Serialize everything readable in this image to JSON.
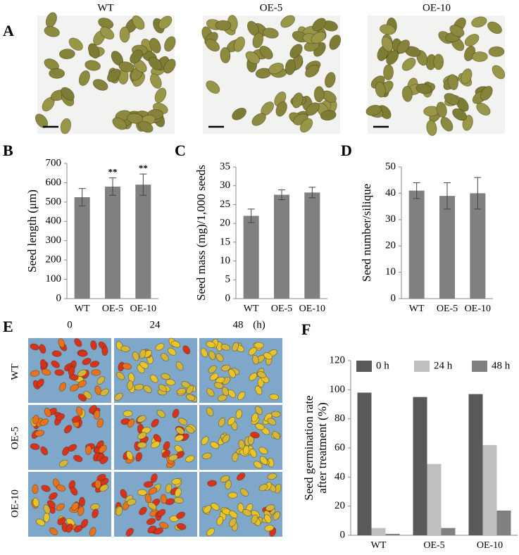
{
  "figure": {
    "panel_labels": [
      "A",
      "B",
      "C",
      "D",
      "E",
      "F"
    ],
    "photo_a_labels": [
      "WT",
      "OE-5",
      "OE-10"
    ],
    "photo_e_columns": [
      "0",
      "24",
      "48"
    ],
    "photo_e_unit": "(h)",
    "photo_e_rows": [
      "WT",
      "OE-5",
      "OE-10"
    ]
  },
  "chart_data": [
    {
      "type": "bar",
      "ylabel": [
        "Seed length (μm)"
      ],
      "categories": [
        "WT",
        "OE-5",
        "OE-10"
      ],
      "values": [
        525,
        580,
        590
      ],
      "errors": [
        45,
        45,
        55
      ],
      "annotations": [
        null,
        "**",
        "**"
      ],
      "color": "#808080",
      "ylim": [
        0,
        700
      ],
      "yticks": [
        0,
        100,
        200,
        300,
        400,
        500,
        600,
        700
      ]
    },
    {
      "type": "bar",
      "ylabel": [
        "Seed mass (mg)/1,000 seeds"
      ],
      "categories": [
        "WT",
        "OE-5",
        "OE-10"
      ],
      "values": [
        22,
        27.6,
        28.2
      ],
      "errors": [
        1.8,
        1.3,
        1.4
      ],
      "color": "#808080",
      "ylim": [
        0,
        35
      ],
      "yticks": [
        0,
        5,
        10,
        15,
        20,
        25,
        30,
        35
      ]
    },
    {
      "type": "bar",
      "ylabel": [
        "Seed number/silique"
      ],
      "categories": [
        "WT",
        "OE-5",
        "OE-10"
      ],
      "values": [
        41,
        39,
        40
      ],
      "errors": [
        3,
        5,
        6
      ],
      "color": "#808080",
      "ylim": [
        0,
        50
      ],
      "yticks": [
        0,
        10,
        20,
        30,
        40,
        50
      ]
    },
    {
      "type": "bar",
      "ylabel": [
        "Seed germination rate",
        "after treatment (%)"
      ],
      "categories": [
        "WT",
        "OE-5",
        "OE-10"
      ],
      "series": [
        {
          "name": "0 h",
          "color": "#595959",
          "values": [
            98,
            95,
            97
          ]
        },
        {
          "name": "24 h",
          "color": "#bfbfbf",
          "values": [
            5,
            49,
            62
          ]
        },
        {
          "name": "48 h",
          "color": "#808080",
          "values": [
            1,
            5,
            17
          ]
        }
      ],
      "ylim": [
        0,
        120
      ],
      "yticks": [
        0,
        20,
        40,
        60,
        80,
        100,
        120
      ],
      "legend": "top"
    }
  ]
}
